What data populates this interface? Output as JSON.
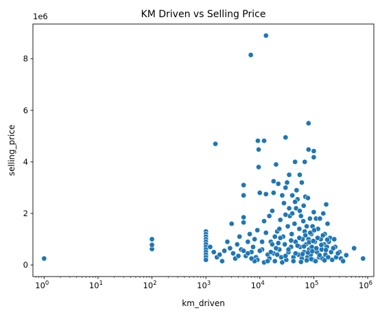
{
  "chart_data": {
    "type": "scatter",
    "title": "KM Driven vs Selling Price",
    "xlabel": "km_driven",
    "ylabel": "selling_price",
    "x_scale": "log",
    "xlim": [
      0.62,
      1300000
    ],
    "ylim": [
      -450000,
      9350000
    ],
    "y_offset_text": "1e6",
    "x_ticks": [
      {
        "base": "10",
        "exp": "0",
        "value": 1
      },
      {
        "base": "10",
        "exp": "1",
        "value": 10
      },
      {
        "base": "10",
        "exp": "2",
        "value": 100
      },
      {
        "base": "10",
        "exp": "3",
        "value": 1000
      },
      {
        "base": "10",
        "exp": "4",
        "value": 10000
      },
      {
        "base": "10",
        "exp": "5",
        "value": 100000
      },
      {
        "base": "10",
        "exp": "6",
        "value": 1000000
      }
    ],
    "y_ticks": [
      {
        "label": "0",
        "value": 0
      },
      {
        "label": "2",
        "value": 2000000
      },
      {
        "label": "4",
        "value": 4000000
      },
      {
        "label": "6",
        "value": 6000000
      },
      {
        "label": "8",
        "value": 8000000
      }
    ],
    "grid": false,
    "marker_color": "#1f77b4",
    "points": [
      [
        1,
        250000
      ],
      [
        100,
        620000
      ],
      [
        100,
        780000
      ],
      [
        100,
        1000000
      ],
      [
        1500,
        4700000
      ],
      [
        5000,
        3100000
      ],
      [
        5000,
        2700000
      ],
      [
        5000,
        1850000
      ],
      [
        5000,
        1650000
      ],
      [
        3000,
        1600000
      ],
      [
        6800,
        8150000
      ],
      [
        13000,
        8900000
      ],
      [
        9200,
        4820000
      ],
      [
        12000,
        4820000
      ],
      [
        30000,
        4950000
      ],
      [
        9500,
        4480000
      ],
      [
        9500,
        3800000
      ],
      [
        80000,
        5500000
      ],
      [
        80000,
        4480000
      ],
      [
        100000,
        4420000
      ],
      [
        100000,
        4180000
      ],
      [
        45000,
        4000000
      ],
      [
        68000,
        4000000
      ],
      [
        20000,
        3900000
      ],
      [
        35000,
        3500000
      ],
      [
        55000,
        3500000
      ],
      [
        60000,
        3200000
      ],
      [
        18000,
        3250000
      ],
      [
        22000,
        3150000
      ],
      [
        10000,
        2800000
      ],
      [
        13000,
        2750000
      ],
      [
        18000,
        2800000
      ],
      [
        26000,
        2700000
      ],
      [
        30000,
        3000000
      ],
      [
        32000,
        3200000
      ],
      [
        40000,
        2700000
      ],
      [
        48000,
        2900000
      ],
      [
        50000,
        2550000
      ],
      [
        70000,
        2650000
      ],
      [
        78000,
        2600000
      ],
      [
        65000,
        2300000
      ],
      [
        100000,
        2050000
      ],
      [
        110000,
        1800000
      ],
      [
        130000,
        1800000
      ],
      [
        150000,
        2000000
      ],
      [
        170000,
        2350000
      ],
      [
        180000,
        1600000
      ],
      [
        200000,
        1050000
      ],
      [
        240000,
        1000000
      ],
      [
        250000,
        700000
      ],
      [
        300000,
        500000
      ],
      [
        400000,
        380000
      ],
      [
        560000,
        650000
      ],
      [
        820000,
        250000
      ],
      [
        1000,
        1300000
      ],
      [
        1000,
        1200000
      ],
      [
        1000,
        1100000
      ],
      [
        1000,
        1000000
      ],
      [
        1000,
        900000
      ],
      [
        1000,
        800000
      ],
      [
        1000,
        700000
      ],
      [
        1000,
        600000
      ],
      [
        1000,
        500000
      ],
      [
        1000,
        400000
      ],
      [
        1000,
        300000
      ],
      [
        1000,
        200000
      ],
      [
        1200,
        700000
      ],
      [
        1400,
        500000
      ],
      [
        1600,
        300000
      ],
      [
        1800,
        400000
      ],
      [
        2000,
        150000
      ],
      [
        2200,
        550000
      ],
      [
        2500,
        900000
      ],
      [
        2800,
        650000
      ],
      [
        3200,
        450000
      ],
      [
        3500,
        250000
      ],
      [
        3800,
        800000
      ],
      [
        4200,
        1100000
      ],
      [
        4500,
        600000
      ],
      [
        5500,
        350000
      ],
      [
        6000,
        900000
      ],
      [
        6500,
        1200000
      ],
      [
        7000,
        500000
      ],
      [
        7500,
        700000
      ],
      [
        8000,
        1000000
      ],
      [
        8500,
        300000
      ],
      [
        9000,
        1350000
      ],
      [
        11000,
        600000
      ],
      [
        12000,
        1700000
      ],
      [
        14000,
        400000
      ],
      [
        15000,
        1900000
      ],
      [
        16000,
        900000
      ],
      [
        17000,
        2100000
      ],
      [
        19000,
        150000
      ],
      [
        21000,
        1300000
      ],
      [
        23000,
        600000
      ],
      [
        24000,
        1750000
      ],
      [
        25000,
        300000
      ],
      [
        27000,
        1100000
      ],
      [
        28000,
        2400000
      ],
      [
        29000,
        800000
      ],
      [
        31000,
        200000
      ],
      [
        33000,
        1500000
      ],
      [
        34000,
        500000
      ],
      [
        36000,
        1900000
      ],
      [
        38000,
        700000
      ],
      [
        39000,
        1200000
      ],
      [
        42000,
        300000
      ],
      [
        44000,
        1600000
      ],
      [
        46000,
        900000
      ],
      [
        47000,
        2200000
      ],
      [
        52000,
        400000
      ],
      [
        54000,
        1400000
      ],
      [
        56000,
        700000
      ],
      [
        58000,
        1900000
      ],
      [
        60000,
        250000
      ],
      [
        62000,
        1000000
      ],
      [
        64000,
        1700000
      ],
      [
        66000,
        500000
      ],
      [
        68000,
        1300000
      ],
      [
        72000,
        800000
      ],
      [
        74000,
        1500000
      ],
      [
        76000,
        300000
      ],
      [
        80000,
        1000000
      ],
      [
        82000,
        600000
      ],
      [
        85000,
        1800000
      ],
      [
        88000,
        400000
      ],
      [
        90000,
        1200000
      ],
      [
        92000,
        700000
      ],
      [
        95000,
        1500000
      ],
      [
        98000,
        200000
      ],
      [
        105000,
        900000
      ],
      [
        115000,
        500000
      ],
      [
        120000,
        1400000
      ],
      [
        125000,
        300000
      ],
      [
        135000,
        1000000
      ],
      [
        140000,
        600000
      ],
      [
        145000,
        250000
      ],
      [
        155000,
        800000
      ],
      [
        160000,
        1200000
      ],
      [
        165000,
        400000
      ],
      [
        175000,
        700000
      ],
      [
        185000,
        300000
      ],
      [
        190000,
        900000
      ],
      [
        210000,
        500000
      ],
      [
        220000,
        200000
      ],
      [
        230000,
        650000
      ],
      [
        260000,
        300000
      ],
      [
        280000,
        450000
      ],
      [
        320000,
        250000
      ],
      [
        350000,
        150000
      ],
      [
        12000,
        100000
      ],
      [
        15000,
        250000
      ],
      [
        18000,
        450000
      ],
      [
        20000,
        650000
      ],
      [
        22000,
        850000
      ],
      [
        24000,
        1050000
      ],
      [
        26000,
        100000
      ],
      [
        30000,
        350000
      ],
      [
        34000,
        600000
      ],
      [
        38000,
        950000
      ],
      [
        42000,
        150000
      ],
      [
        46000,
        450000
      ],
      [
        50000,
        750000
      ],
      [
        54000,
        1050000
      ],
      [
        58000,
        120000
      ],
      [
        62000,
        420000
      ],
      [
        66000,
        720000
      ],
      [
        70000,
        1150000
      ],
      [
        74000,
        180000
      ],
      [
        78000,
        480000
      ],
      [
        82000,
        880000
      ],
      [
        86000,
        1250000
      ],
      [
        90000,
        230000
      ],
      [
        94000,
        530000
      ],
      [
        98000,
        930000
      ],
      [
        102000,
        1350000
      ],
      [
        108000,
        150000
      ],
      [
        112000,
        650000
      ],
      [
        118000,
        1050000
      ],
      [
        128000,
        380000
      ],
      [
        138000,
        780000
      ],
      [
        148000,
        1150000
      ],
      [
        158000,
        180000
      ],
      [
        168000,
        580000
      ],
      [
        178000,
        980000
      ],
      [
        9000,
        200000
      ],
      [
        10000,
        550000
      ],
      [
        11000,
        900000
      ],
      [
        13000,
        1250000
      ],
      [
        14000,
        150000
      ],
      [
        16000,
        500000
      ],
      [
        17000,
        800000
      ],
      [
        19000,
        1100000
      ],
      [
        21000,
        400000
      ],
      [
        23000,
        1400000
      ],
      [
        8000,
        150000
      ],
      [
        7000,
        250000
      ],
      [
        6000,
        450000
      ],
      [
        5000,
        550000
      ],
      [
        4000,
        350000
      ],
      [
        45000,
        2450000
      ],
      [
        55000,
        2100000
      ],
      [
        40000,
        2000000
      ],
      [
        35000,
        2200000
      ],
      [
        30000,
        1950000
      ]
    ]
  }
}
